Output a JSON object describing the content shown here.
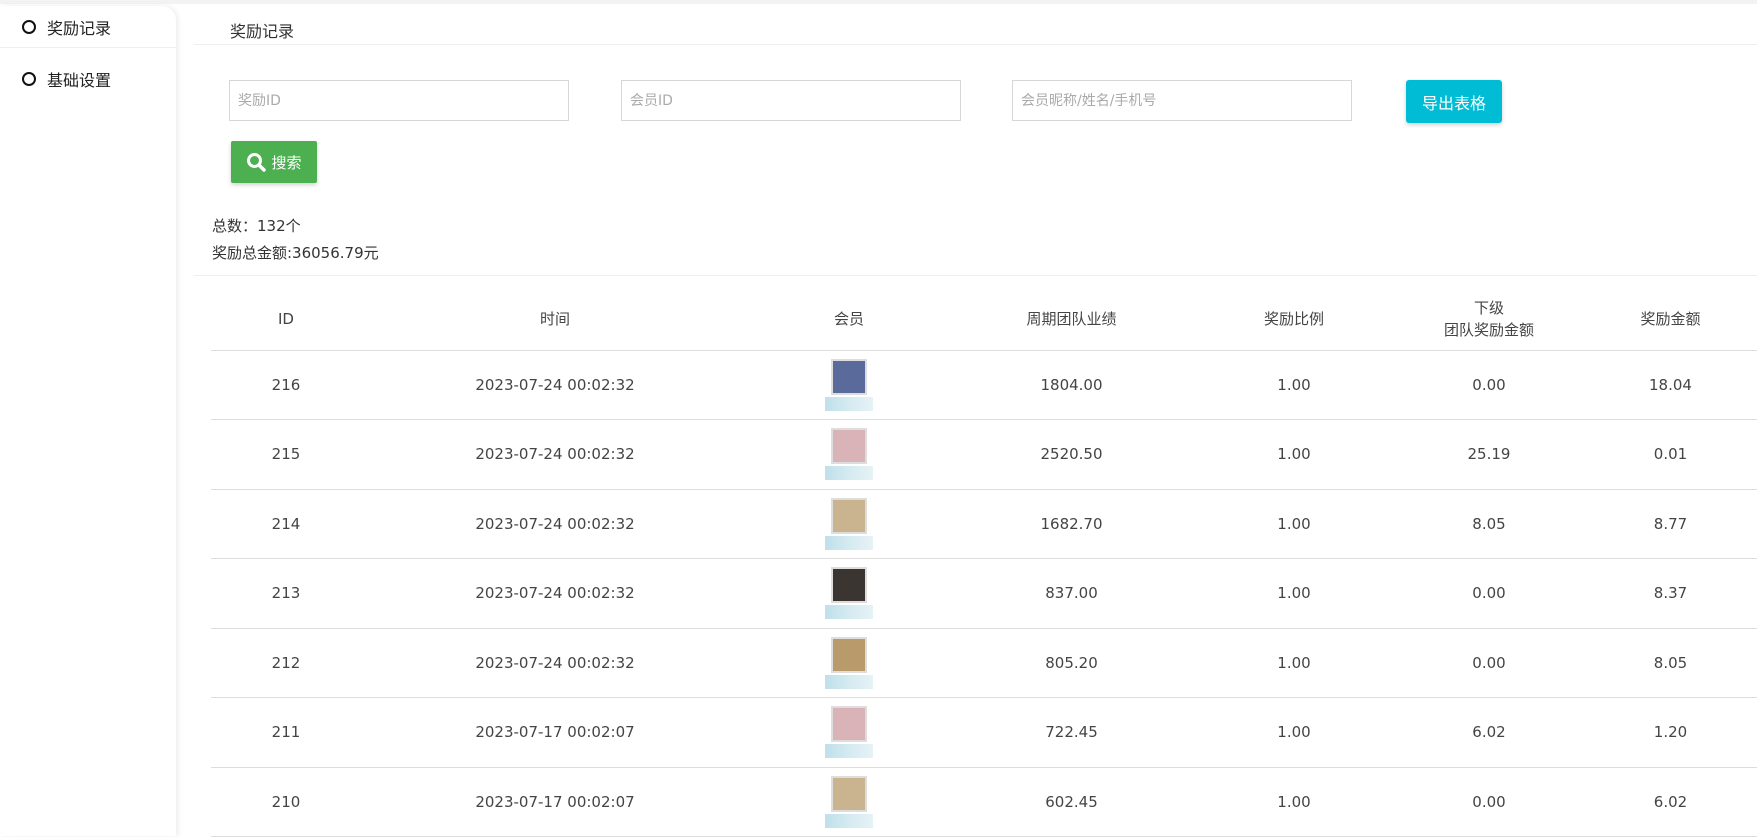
{
  "sidebar": {
    "items": [
      {
        "label": "奖励记录"
      },
      {
        "label": "基础设置"
      }
    ]
  },
  "page": {
    "title": "奖励记录"
  },
  "filters": {
    "reward_id_placeholder": "奖励ID",
    "member_id_placeholder": "会员ID",
    "member_info_placeholder": "会员昵称/姓名/手机号",
    "export_label": "导出表格",
    "search_label": "搜索"
  },
  "stats": {
    "total_count": "总数：132个",
    "total_amount": "奖励总金额:36056.79元"
  },
  "table": {
    "headers": [
      "ID",
      "时间",
      "会员",
      "周期团队业绩",
      "奖励比例",
      "下级",
      "团队奖励金额",
      "奖励金额"
    ],
    "rows": [
      {
        "id": "216",
        "time": "2023-07-24 00:02:32",
        "perf": "1804.00",
        "ratio": "1.00",
        "sub": "0.00",
        "amount": "18.04",
        "avatar_color": "#5a6a9a"
      },
      {
        "id": "215",
        "time": "2023-07-24 00:02:32",
        "perf": "2520.50",
        "ratio": "1.00",
        "sub": "25.19",
        "amount": "0.01",
        "avatar_color": "#d9b3b8"
      },
      {
        "id": "214",
        "time": "2023-07-24 00:02:32",
        "perf": "1682.70",
        "ratio": "1.00",
        "sub": "8.05",
        "amount": "8.77",
        "avatar_color": "#c9b48f"
      },
      {
        "id": "213",
        "time": "2023-07-24 00:02:32",
        "perf": "837.00",
        "ratio": "1.00",
        "sub": "0.00",
        "amount": "8.37",
        "avatar_color": "#3a3530"
      },
      {
        "id": "212",
        "time": "2023-07-24 00:02:32",
        "perf": "805.20",
        "ratio": "1.00",
        "sub": "0.00",
        "amount": "8.05",
        "avatar_color": "#b99a6a"
      },
      {
        "id": "211",
        "time": "2023-07-17 00:02:07",
        "perf": "722.45",
        "ratio": "1.00",
        "sub": "6.02",
        "amount": "1.20",
        "avatar_color": "#d9b3b8"
      },
      {
        "id": "210",
        "time": "2023-07-17 00:02:07",
        "perf": "602.45",
        "ratio": "1.00",
        "sub": "0.00",
        "amount": "6.02",
        "avatar_color": "#c9b48f"
      }
    ]
  }
}
